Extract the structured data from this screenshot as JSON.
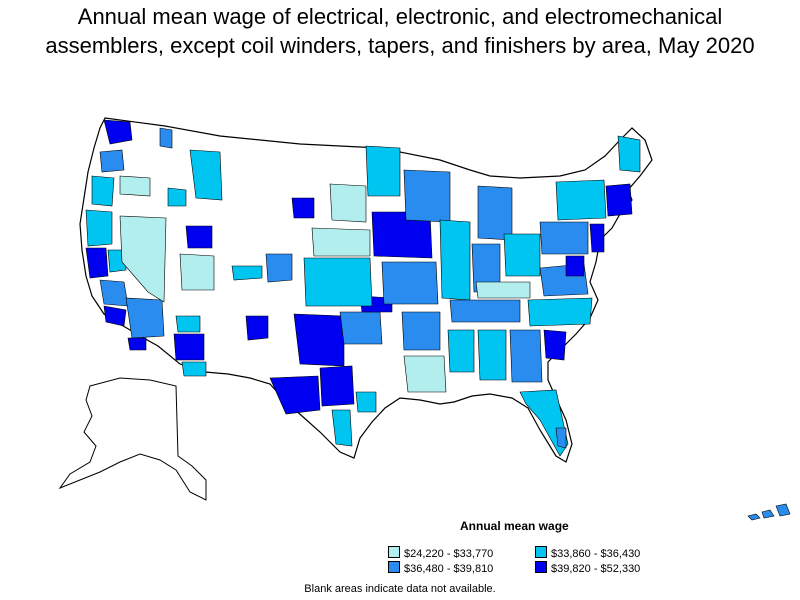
{
  "title_line1": "Annual mean wage of electrical, electronic, and electromechanical",
  "title_line2": "assemblers, except coil winders, tapers, and finishers by area, May 2020",
  "legend": {
    "title": "Annual mean wage",
    "items": [
      {
        "label": "$24,220 - $33,770",
        "color": "#b2eeee"
      },
      {
        "label": "$33,860 - $36,430",
        "color": "#00c5f0"
      },
      {
        "label": "$36,480 - $39,810",
        "color": "#2b8cf0"
      },
      {
        "label": "$39,820 - $52,330",
        "color": "#0000f0"
      }
    ]
  },
  "note": "Blank areas indicate data not available.",
  "colors": {
    "blank": "#ffffff",
    "border": "#000000"
  }
}
